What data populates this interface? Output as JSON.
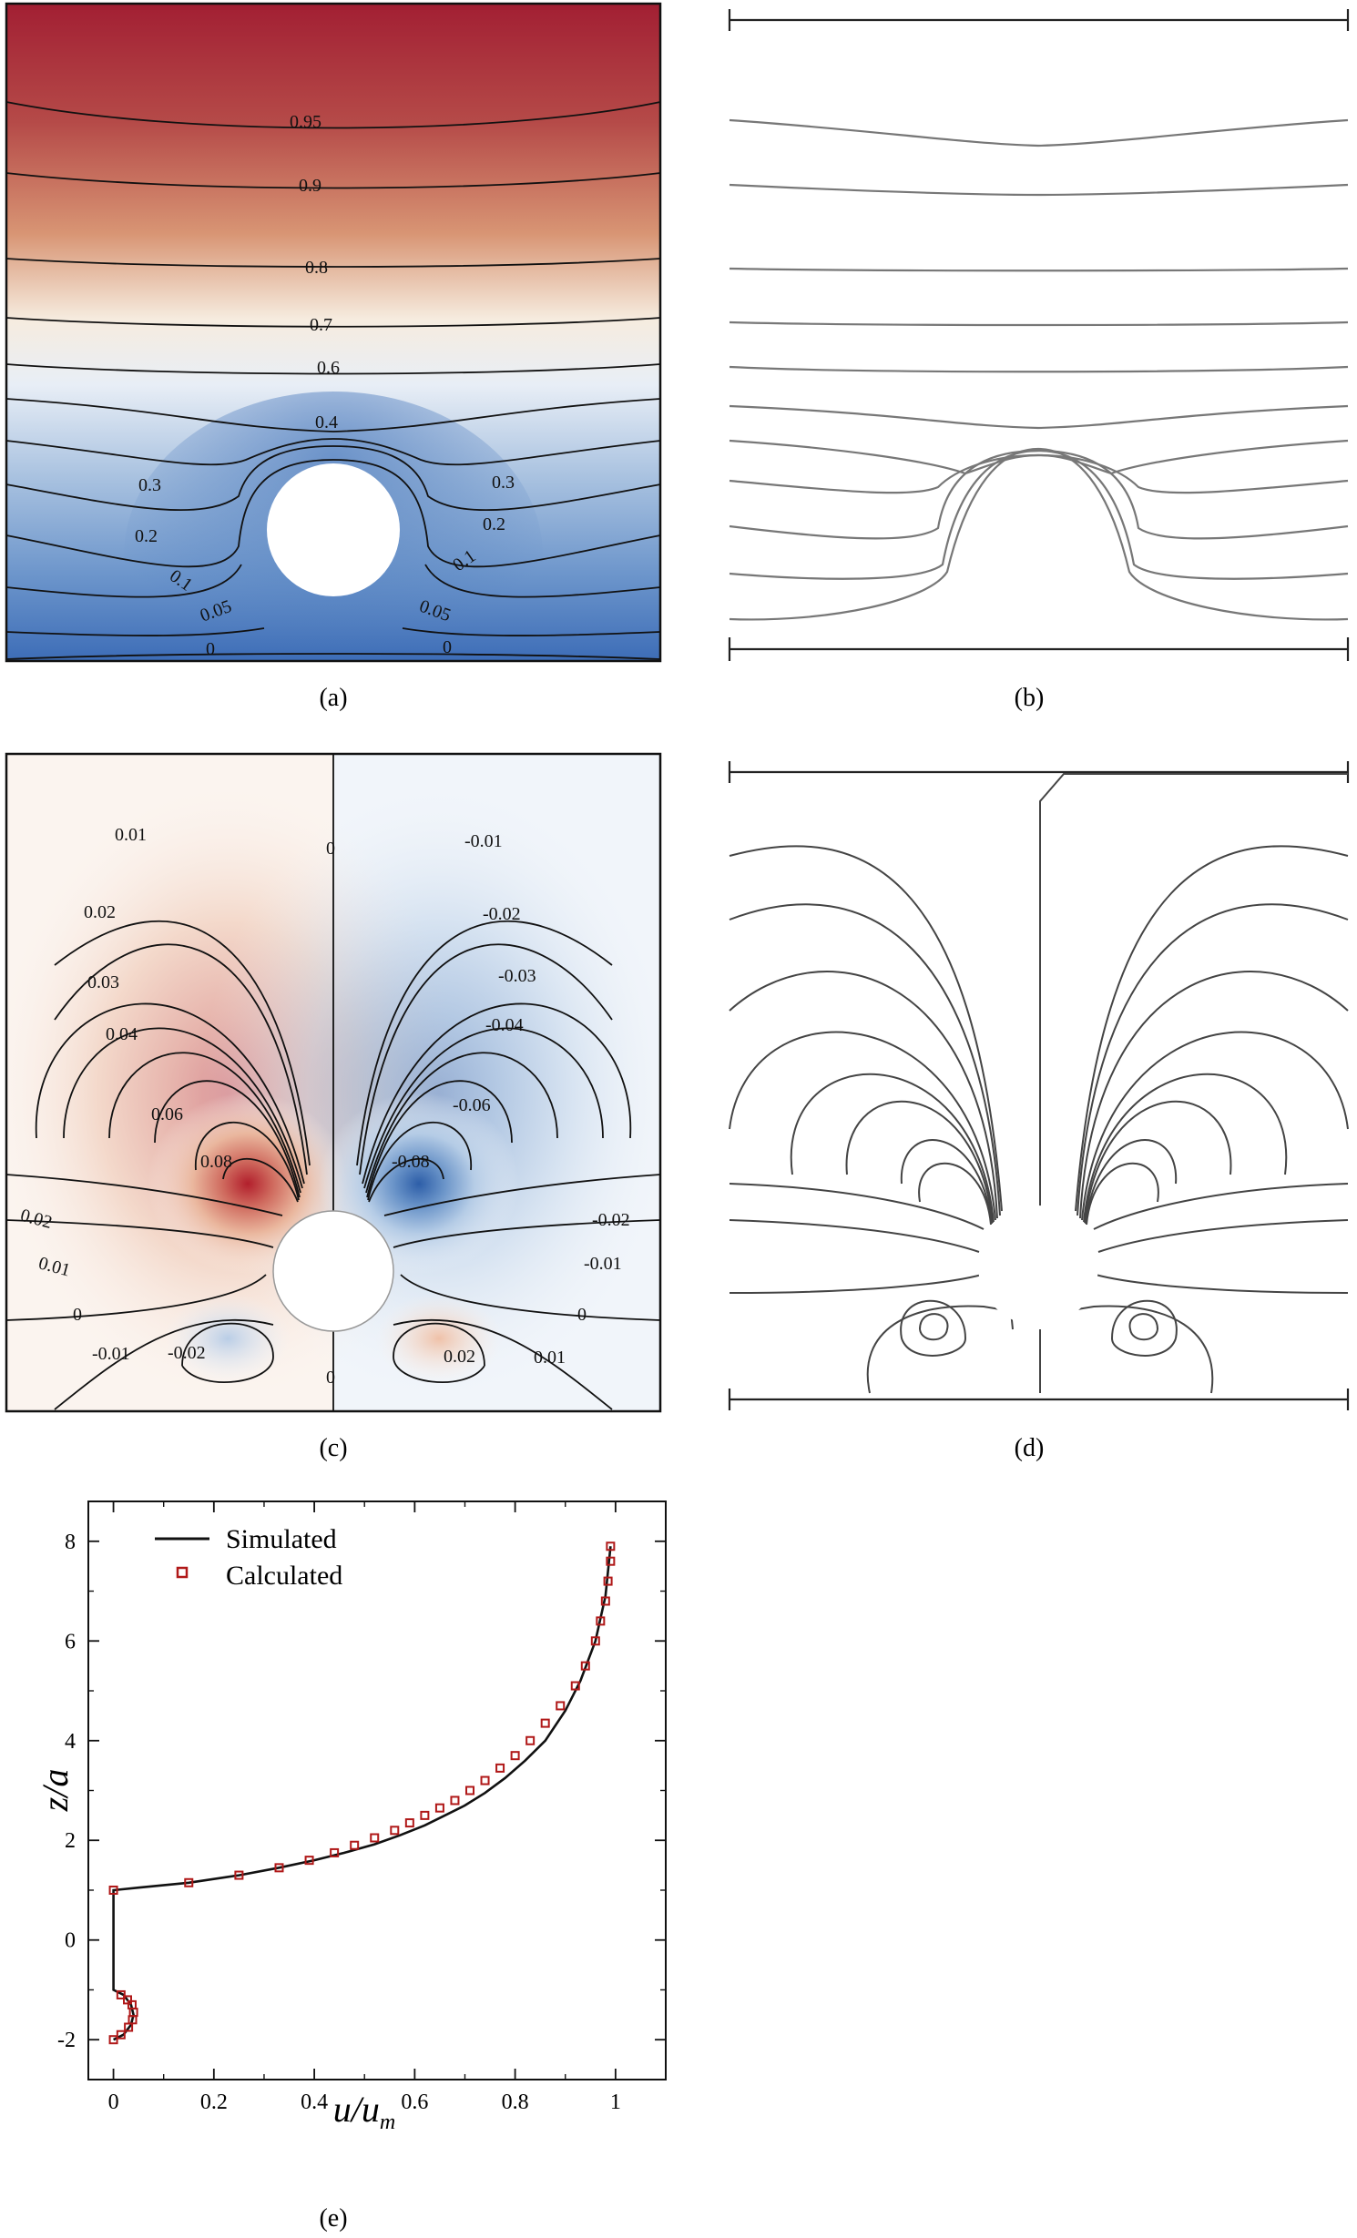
{
  "panel_labels": {
    "a": "(a)",
    "b": "(b)",
    "c": "(c)",
    "d": "(d)",
    "e": "(e)"
  },
  "contour_labels": {
    "a": [
      "0.95",
      "0.9",
      "0.8",
      "0.7",
      "0.6",
      "0.4",
      "0.3",
      "0.3",
      "0.2",
      "0.2",
      "0.1",
      "0.1",
      "0.05",
      "0.05",
      "0",
      "0"
    ],
    "c": [
      "0.01",
      "0",
      "-0.01",
      "0.02",
      "-0.02",
      "0.03",
      "-0.03",
      "0.04",
      "-0.04",
      "0.06",
      "-0.06",
      "0.08",
      "-0.08",
      "0.02",
      "-0.02",
      "0.01",
      "-0.01",
      "0",
      "0",
      "-0.01",
      "-0.02",
      "0.02",
      "0.01",
      "0"
    ]
  },
  "colors": {
    "red": "#a3263a",
    "blue": "#3f70b8",
    "white": "#fbf8f5",
    "contour": "#111111",
    "calc_marker": "#b01818"
  },
  "chart_data": {
    "type": "line",
    "xlabel": "u/u",
    "xlabel_sub": "m",
    "ylabel": "z/a",
    "xlim": [
      -0.05,
      1.1
    ],
    "ylim": [
      -2.8,
      8.8
    ],
    "x_ticks": [
      "0",
      "0.2",
      "0.4",
      "0.6",
      "0.8",
      "1"
    ],
    "y_ticks": [
      "-2",
      "0",
      "2",
      "4",
      "6",
      "8"
    ],
    "legend_position": "top-left",
    "series": [
      {
        "name": "Simulated",
        "style": "solid-line",
        "x": [
          0,
          0.02,
          0.035,
          0.04,
          0.035,
          0.02,
          0,
          0,
          0,
          0.05,
          0.15,
          0.25,
          0.33,
          0.4,
          0.46,
          0.52,
          0.57,
          0.62,
          0.66,
          0.7,
          0.74,
          0.78,
          0.82,
          0.86,
          0.9,
          0.93,
          0.96,
          0.98,
          0.99
        ],
        "y": [
          -2,
          -1.9,
          -1.7,
          -1.5,
          -1.3,
          -1.1,
          -1,
          0,
          1,
          1.05,
          1.15,
          1.3,
          1.45,
          1.6,
          1.75,
          1.92,
          2.1,
          2.3,
          2.5,
          2.7,
          2.95,
          3.25,
          3.6,
          4.0,
          4.6,
          5.2,
          6.0,
          6.9,
          7.9
        ]
      },
      {
        "name": "Calculated",
        "style": "square-markers",
        "x": [
          0,
          0.015,
          0.03,
          0.038,
          0.04,
          0.037,
          0.028,
          0.015,
          0,
          0.15,
          0.25,
          0.33,
          0.39,
          0.44,
          0.48,
          0.52,
          0.56,
          0.59,
          0.62,
          0.65,
          0.68,
          0.71,
          0.74,
          0.77,
          0.8,
          0.83,
          0.86,
          0.89,
          0.92,
          0.94,
          0.96,
          0.97,
          0.98,
          0.985,
          0.99,
          0.99
        ],
        "y": [
          -2,
          -1.9,
          -1.75,
          -1.6,
          -1.45,
          -1.3,
          -1.2,
          -1.1,
          1,
          1.15,
          1.3,
          1.45,
          1.6,
          1.75,
          1.9,
          2.05,
          2.2,
          2.35,
          2.5,
          2.65,
          2.8,
          3.0,
          3.2,
          3.45,
          3.7,
          4.0,
          4.35,
          4.7,
          5.1,
          5.5,
          6.0,
          6.4,
          6.8,
          7.2,
          7.6,
          7.9
        ]
      }
    ]
  }
}
